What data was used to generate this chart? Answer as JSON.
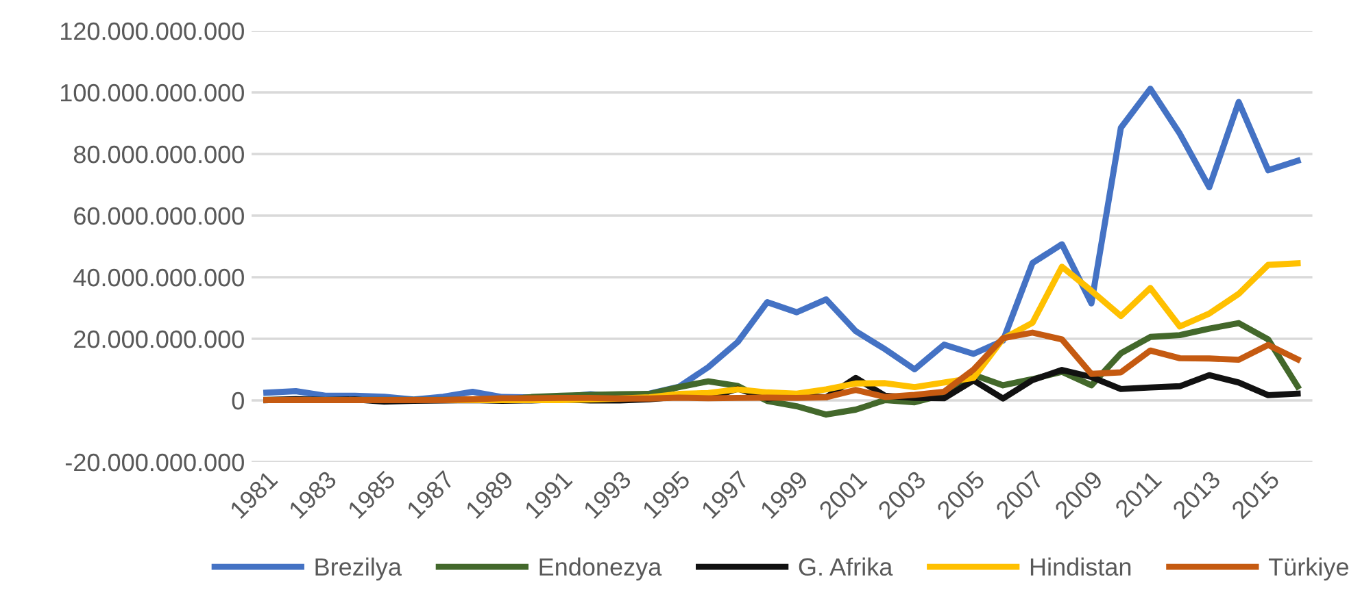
{
  "chart_data": {
    "type": "line",
    "categories": [
      "1981",
      null,
      "1983",
      null,
      "1985",
      null,
      "1987",
      null,
      "1989",
      null,
      "1991",
      null,
      "1993",
      null,
      "1995",
      null,
      "1997",
      null,
      "1999",
      null,
      "2001",
      null,
      "2003",
      null,
      "2005",
      null,
      "2007",
      null,
      "2009",
      null,
      "2011",
      null,
      "2013",
      null,
      "2015",
      null
    ],
    "series": [
      {
        "name": "Brezilya",
        "color": "#4472c4",
        "values": [
          2500000000.0,
          3000000000.0,
          1500000000.0,
          1500000000.0,
          1200000000.0,
          300000000.0,
          1200000000.0,
          2800000000.0,
          1100000000.0,
          1000000000.0,
          1100000000.0,
          2000000000.0,
          1300000000.0,
          2200000000.0,
          4400000000.0,
          10800000000.0,
          19000000000.0,
          31900000000.0,
          28600000000.0,
          32800000000.0,
          22500000000.0,
          16600000000.0,
          10100000000.0,
          18100000000.0,
          15100000000.0,
          19400000000.0,
          44600000000.0,
          50700000000.0,
          31500000000.0,
          88500000000.0,
          101200000000.0,
          86600000000.0,
          69200000000.0,
          96900000000.0,
          74700000000.0,
          77800000000.0
        ]
      },
      {
        "name": "Endonezya",
        "color": "#43682b",
        "values": [
          200000000.0,
          200000000.0,
          200000000.0,
          200000000.0,
          200000000.0,
          200000000.0,
          200000000.0,
          200000000.0,
          200000000.0,
          1100000000.0,
          1500000000.0,
          1800000000.0,
          2000000000.0,
          2100000000.0,
          4300000000.0,
          6200000000.0,
          4700000000.0,
          -200000000.0,
          -1900000000.0,
          -4600000000.0,
          -3000000000.0,
          100000000.0,
          -600000000.0,
          1900000000.0,
          8300000000.0,
          4900000000.0,
          6900000000.0,
          9300000000.0,
          4900000000.0,
          15300000000.0,
          20600000000.0,
          21200000000.0,
          23300000000.0,
          25100000000.0,
          19800000000.0,
          4500000000.0
        ]
      },
      {
        "name": "G. Afrika",
        "color": "#111111",
        "values": [
          100000000.0,
          400000000.0,
          100000000.0,
          300000000.0,
          -400000000.0,
          -100000000.0,
          0.0,
          100000000.0,
          -100000000.0,
          0.0,
          300000000.0,
          0.0,
          0.0,
          400000000.0,
          1200000000.0,
          800000000.0,
          3800000000.0,
          600000000.0,
          1500000000.0,
          1000000000.0,
          7300000000.0,
          1500000000.0,
          800000000.0,
          700000000.0,
          6500000000.0,
          600000000.0,
          6600000000.0,
          9900000000.0,
          7600000000.0,
          3700000000.0,
          4200000000.0,
          4600000000.0,
          8200000000.0,
          5800000000.0,
          1700000000.0,
          2200000000.0
        ]
      },
      {
        "name": "Hindistan",
        "color": "#ffc000",
        "values": [
          null,
          null,
          null,
          null,
          null,
          100000000.0,
          100000000.0,
          100000000.0,
          100000000.0,
          100000000.0,
          100000000.0,
          300000000.0,
          600000000.0,
          1000000000.0,
          2100000000.0,
          2400000000.0,
          3600000000.0,
          2600000000.0,
          2200000000.0,
          3600000000.0,
          5500000000.0,
          5600000000.0,
          4300000000.0,
          5800000000.0,
          7300000000.0,
          20000000000.0,
          25200000000.0,
          43400000000.0,
          35600000000.0,
          27400000000.0,
          36500000000.0,
          24000000000.0,
          28200000000.0,
          34600000000.0,
          44000000000.0,
          44500000000.0
        ]
      },
      {
        "name": "Türkiye",
        "color": "#c55a11",
        "values": [
          100000000.0,
          100000000.0,
          100000000.0,
          100000000.0,
          100000000.0,
          100000000.0,
          100000000.0,
          400000000.0,
          700000000.0,
          700000000.0,
          800000000.0,
          800000000.0,
          600000000.0,
          600000000.0,
          900000000.0,
          700000000.0,
          800000000.0,
          900000000.0,
          800000000.0,
          1000000000.0,
          3400000000.0,
          1100000000.0,
          1800000000.0,
          2800000000.0,
          10000000000.0,
          20200000000.0,
          22000000000.0,
          19800000000.0,
          8600000000.0,
          9100000000.0,
          16200000000.0,
          13700000000.0,
          13600000000.0,
          13200000000.0,
          18000000000.0,
          13300000000.0
        ]
      }
    ],
    "ylim": [
      -20000000000,
      120000000000
    ],
    "yticks": [
      {
        "value": -20000000000,
        "label": "-20.000.000.000"
      },
      {
        "value": 0,
        "label": "0"
      },
      {
        "value": 20000000000,
        "label": "20.000.000.000"
      },
      {
        "value": 40000000000,
        "label": "40.000.000.000"
      },
      {
        "value": 60000000000,
        "label": "60.000.000.000"
      },
      {
        "value": 80000000000,
        "label": "80.000.000.000"
      },
      {
        "value": 100000000000,
        "label": "100.000.000.000"
      },
      {
        "value": 120000000000,
        "label": "120.000.000.000"
      }
    ],
    "grid": "y",
    "legend": "bottom",
    "marker": "none",
    "line_style": "solid"
  }
}
